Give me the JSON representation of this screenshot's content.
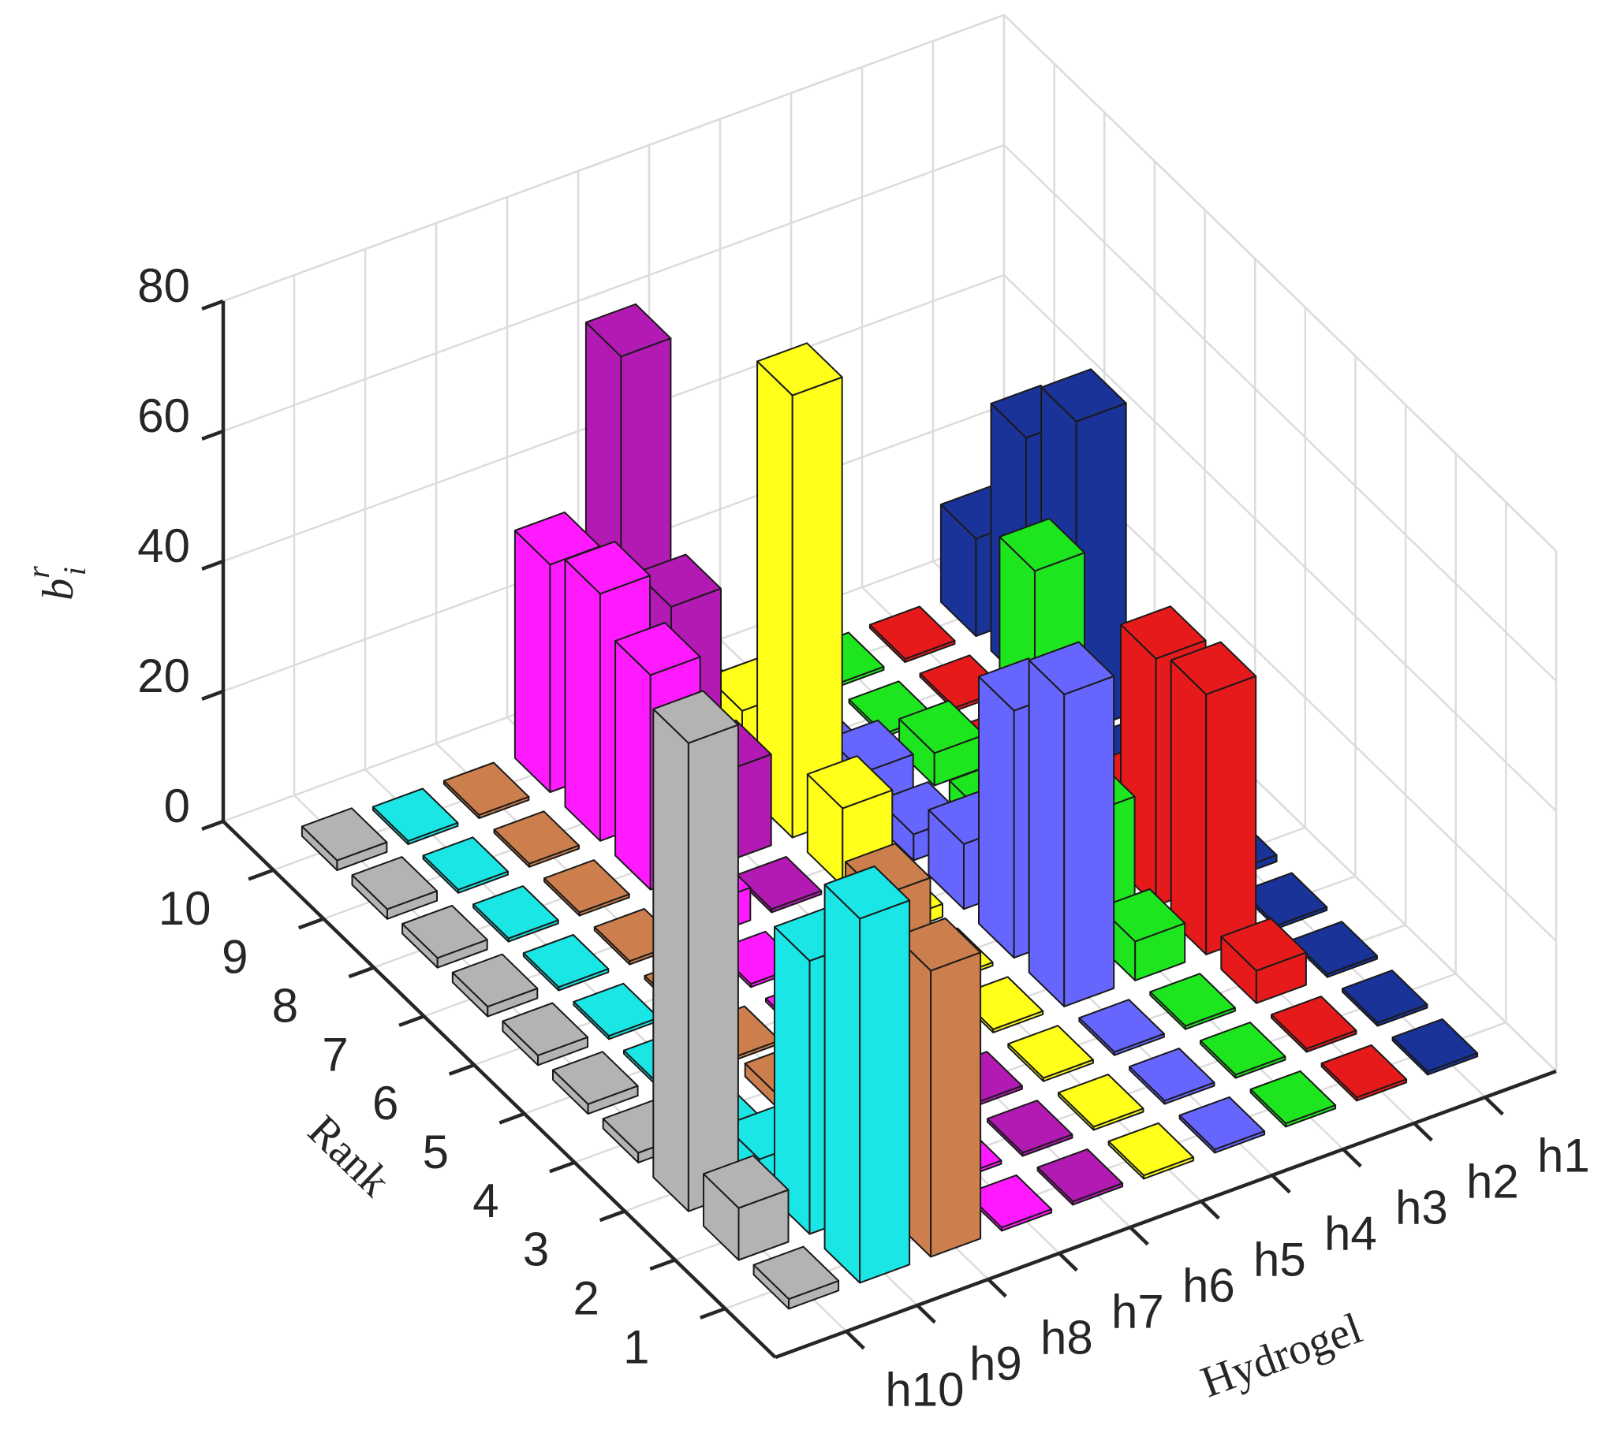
{
  "chart_data": {
    "type": "bar3d",
    "xlabel": "Hydrogel",
    "ylabel": "Rank",
    "zlabel": {
      "text": "b",
      "sup": "r",
      "sub": "i"
    },
    "categories": [
      1,
      2,
      3,
      4,
      5,
      6,
      7,
      8,
      9,
      10
    ],
    "series": [
      {
        "name": "h1",
        "color": "#1a3399",
        "values": [
          0.5,
          0.5,
          0.5,
          0.5,
          1,
          1,
          2,
          48,
          38,
          15
        ]
      },
      {
        "name": "h2",
        "color": "#e61a1a",
        "values": [
          0.5,
          0.5,
          5,
          40,
          38,
          8,
          0.5,
          0.5,
          0.5,
          0.5
        ]
      },
      {
        "name": "h3",
        "color": "#1ee61e",
        "values": [
          0.5,
          0.5,
          0.5,
          6,
          18,
          48,
          3,
          5,
          0.5,
          0.5
        ]
      },
      {
        "name": "h4",
        "color": "#6666ff",
        "values": [
          0.5,
          0.5,
          0.5,
          48,
          38,
          10,
          4,
          6,
          0.5,
          0.5
        ]
      },
      {
        "name": "h5",
        "color": "#ffff1a",
        "values": [
          0.5,
          0.5,
          0.5,
          0.5,
          0.5,
          2,
          12,
          68,
          12,
          5
        ]
      },
      {
        "name": "h6",
        "color": "#b31ab3",
        "values": [
          0.5,
          0.5,
          0.5,
          0.5,
          0.5,
          0.5,
          0.5,
          14,
          32,
          63
        ]
      },
      {
        "name": "h7",
        "color": "#ff1aff",
        "values": [
          0.5,
          0.5,
          0.5,
          0.5,
          0.5,
          0.5,
          5,
          33,
          38,
          35
        ]
      },
      {
        "name": "h8",
        "color": "#cc7f4d",
        "values": [
          44,
          48,
          4,
          2,
          0.5,
          0.5,
          0.5,
          0.5,
          0.5,
          0.5
        ]
      },
      {
        "name": "h9",
        "color": "#1ae6e6",
        "values": [
          56,
          42,
          4,
          0.5,
          0.5,
          0.5,
          0.5,
          0.5,
          0.5,
          0.5
        ]
      },
      {
        "name": "h10",
        "color": "#b3b3b3",
        "values": [
          1.5,
          8,
          72,
          1.5,
          1.5,
          1.5,
          1.5,
          1.5,
          1.5,
          1.5
        ]
      }
    ],
    "zlim": [
      0,
      80
    ],
    "zticks": [
      0,
      20,
      40,
      60,
      80
    ],
    "grid": true
  }
}
